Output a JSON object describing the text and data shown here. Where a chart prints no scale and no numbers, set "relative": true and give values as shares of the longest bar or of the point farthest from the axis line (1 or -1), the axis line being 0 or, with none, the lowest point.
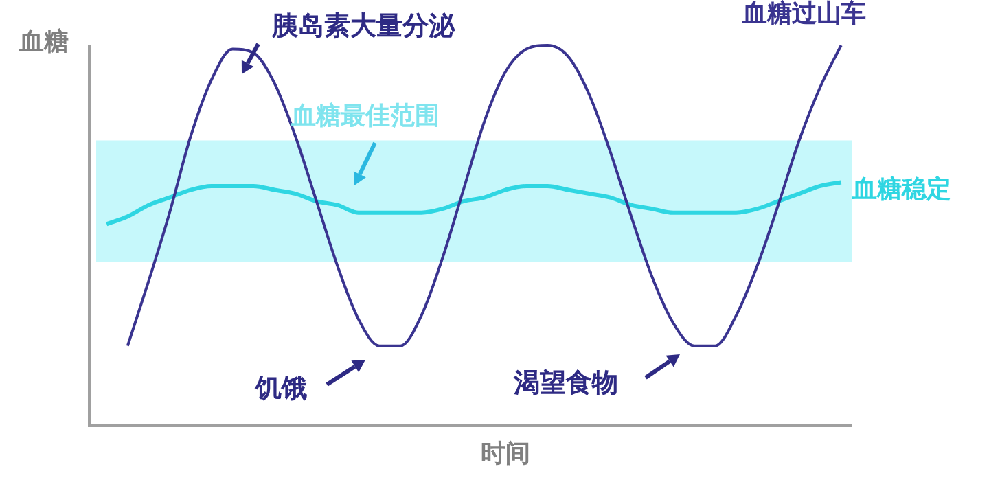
{
  "chart_data": {
    "type": "line",
    "relative": true,
    "xlabel": "时间",
    "ylabel": "血糖",
    "legend": false,
    "marker": "none",
    "categories": [
      null,
      null,
      null,
      null,
      null,
      null,
      null,
      null,
      null,
      null,
      null,
      null,
      null,
      null,
      null,
      null,
      null,
      null,
      null,
      null,
      null,
      null,
      null,
      null,
      null,
      null,
      null,
      null,
      null,
      null,
      null,
      null,
      null,
      null,
      null,
      null
    ],
    "series": [
      {
        "name": "血糖过山车",
        "color": "#3a3490",
        "values": [
          null,
          0.21,
          0.38,
          0.56,
          0.76,
          0.91,
          0.99,
          0.98,
          0.9,
          0.76,
          0.59,
          0.42,
          0.28,
          0.21,
          0.21,
          0.29,
          0.44,
          0.62,
          0.8,
          0.93,
          0.99,
          1,
          0.97,
          0.87,
          0.72,
          0.55,
          0.39,
          0.27,
          0.21,
          0.21,
          0.29,
          0.42,
          0.58,
          0.75,
          0.89,
          1
        ]
      },
      {
        "name": "血糖稳定",
        "color": "#2fd6e2",
        "values": [
          0.53,
          0.55,
          0.58,
          0.6,
          0.62,
          0.63,
          0.63,
          0.63,
          0.62,
          0.61,
          0.59,
          0.58,
          0.56,
          0.56,
          0.56,
          0.56,
          0.57,
          0.59,
          0.6,
          0.62,
          0.63,
          0.63,
          0.62,
          0.61,
          0.6,
          0.58,
          0.57,
          0.56,
          0.56,
          0.56,
          0.56,
          0.57,
          0.59,
          0.61,
          0.63,
          0.64
        ]
      }
    ],
    "bands": [
      {
        "axis": "y",
        "from": 0.43,
        "to": 0.75,
        "label": "血糖最佳范围",
        "color": "#c6f8fb"
      }
    ],
    "annotations": [
      "胰岛素大量分泌",
      "饥饿",
      "渴望食物"
    ]
  }
}
